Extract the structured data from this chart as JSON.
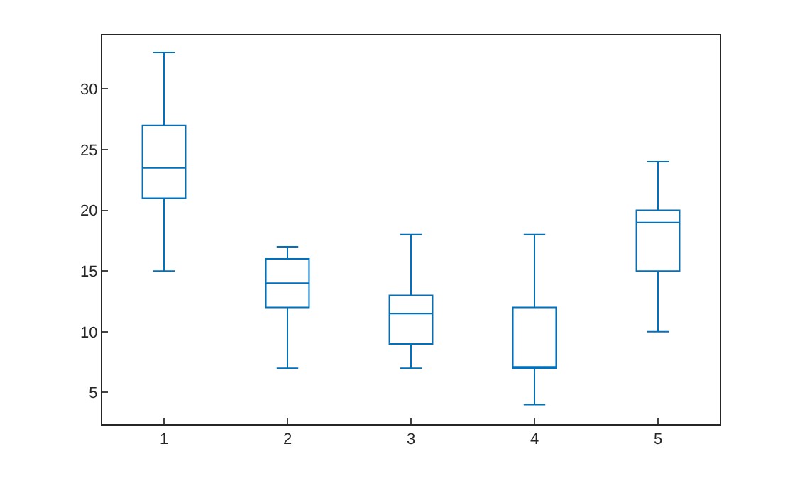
{
  "chart_data": {
    "type": "box",
    "categories": [
      "1",
      "2",
      "3",
      "4",
      "5"
    ],
    "series": [
      {
        "color": "#0072bd",
        "boxes": [
          {
            "low": 15,
            "q1": 21,
            "median": 23.5,
            "q3": 27,
            "high": 33
          },
          {
            "low": 7,
            "q1": 12,
            "median": 14,
            "q3": 16,
            "high": 17
          },
          {
            "low": 7,
            "q1": 9,
            "median": 11.5,
            "q3": 13,
            "high": 18
          },
          {
            "low": 4,
            "q1": 7,
            "median": 7,
            "q3": 12,
            "high": 18
          },
          {
            "low": 10,
            "q1": 15,
            "median": 19,
            "q3": 20,
            "high": 24
          }
        ]
      }
    ],
    "ylim": [
      2.4,
      34.4
    ],
    "yticks": [
      5,
      10,
      15,
      20,
      25,
      30
    ]
  }
}
